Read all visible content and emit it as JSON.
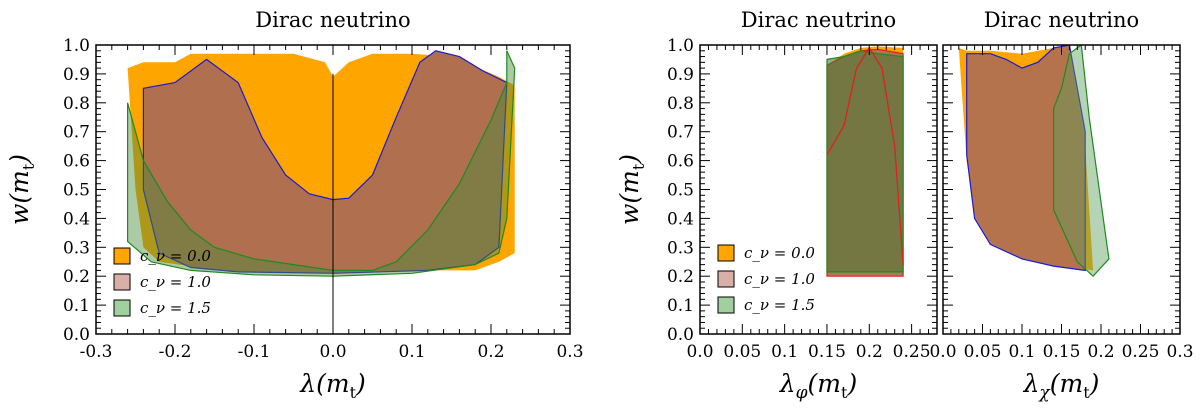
{
  "colors": {
    "c0": "#ffa500",
    "c1": "#b07050",
    "c15": "#7a7a3a",
    "c1_legend": "#d8b0a8",
    "c15_legend": "#a0d0a0",
    "blue": "#1a1ad0",
    "green": "#1f8a1f",
    "red": "#e02020"
  },
  "chart_data": [
    {
      "type": "area",
      "title": "Dirac neutrino",
      "xlabel": "λ(m_t)",
      "ylabel": "w(m_t)",
      "xlim": [
        -0.3,
        0.3
      ],
      "ylim": [
        0.0,
        1.0
      ],
      "xticks": [
        "-0.3",
        "-0.2",
        "-0.1",
        "0.0",
        "0.1",
        "0.2",
        "0.3"
      ],
      "yticks": [
        "0.0",
        "0.1",
        "0.2",
        "0.3",
        "0.4",
        "0.5",
        "0.6",
        "0.7",
        "0.8",
        "0.9",
        "1.0"
      ],
      "legend_position": "bottom-left",
      "series": [
        {
          "name": "c_ν = 0.0",
          "polygon": [
            [
              -0.26,
              0.92
            ],
            [
              -0.24,
              0.94
            ],
            [
              -0.2,
              0.94
            ],
            [
              -0.18,
              0.97
            ],
            [
              -0.1,
              0.97
            ],
            [
              -0.05,
              0.97
            ],
            [
              -0.01,
              0.94
            ],
            [
              0.0,
              0.89
            ],
            [
              0.02,
              0.94
            ],
            [
              0.05,
              0.97
            ],
            [
              0.1,
              0.97
            ],
            [
              0.15,
              0.96
            ],
            [
              0.21,
              0.89
            ],
            [
              0.23,
              0.86
            ],
            [
              0.23,
              0.28
            ],
            [
              0.21,
              0.25
            ],
            [
              0.18,
              0.22
            ],
            [
              0.1,
              0.22
            ],
            [
              0.0,
              0.215
            ],
            [
              -0.1,
              0.22
            ],
            [
              -0.17,
              0.23
            ],
            [
              -0.22,
              0.25
            ],
            [
              -0.24,
              0.3
            ],
            [
              -0.25,
              0.5
            ],
            [
              -0.26,
              0.92
            ]
          ]
        },
        {
          "name": "c_ν = 1.0",
          "polygon": [
            [
              -0.24,
              0.85
            ],
            [
              -0.2,
              0.87
            ],
            [
              -0.16,
              0.95
            ],
            [
              -0.12,
              0.87
            ],
            [
              -0.09,
              0.68
            ],
            [
              -0.06,
              0.55
            ],
            [
              -0.03,
              0.485
            ],
            [
              0.0,
              0.465
            ],
            [
              0.02,
              0.47
            ],
            [
              0.05,
              0.55
            ],
            [
              0.08,
              0.75
            ],
            [
              0.11,
              0.94
            ],
            [
              0.13,
              0.98
            ],
            [
              0.16,
              0.96
            ],
            [
              0.19,
              0.91
            ],
            [
              0.22,
              0.87
            ],
            [
              0.21,
              0.3
            ],
            [
              0.18,
              0.24
            ],
            [
              0.12,
              0.22
            ],
            [
              0.0,
              0.21
            ],
            [
              -0.12,
              0.215
            ],
            [
              -0.18,
              0.23
            ],
            [
              -0.22,
              0.28
            ],
            [
              -0.24,
              0.5
            ],
            [
              -0.24,
              0.85
            ]
          ]
        },
        {
          "name": "c_ν = 1.5",
          "polygon": [
            [
              -0.26,
              0.8
            ],
            [
              -0.24,
              0.6
            ],
            [
              -0.21,
              0.46
            ],
            [
              -0.18,
              0.36
            ],
            [
              -0.15,
              0.3
            ],
            [
              -0.1,
              0.26
            ],
            [
              0.0,
              0.22
            ],
            [
              0.05,
              0.22
            ],
            [
              0.08,
              0.25
            ],
            [
              0.12,
              0.36
            ],
            [
              0.16,
              0.52
            ],
            [
              0.2,
              0.74
            ],
            [
              0.22,
              0.87
            ],
            [
              0.22,
              0.98
            ],
            [
              0.23,
              0.92
            ],
            [
              0.22,
              0.4
            ],
            [
              0.21,
              0.28
            ],
            [
              0.18,
              0.24
            ],
            [
              0.1,
              0.21
            ],
            [
              0.0,
              0.2
            ],
            [
              -0.1,
              0.205
            ],
            [
              -0.18,
              0.22
            ],
            [
              -0.23,
              0.25
            ],
            [
              -0.26,
              0.32
            ],
            [
              -0.26,
              0.8
            ]
          ]
        }
      ]
    },
    {
      "type": "area",
      "title": "Dirac neutrino",
      "xlabel": "λ_φ(m_t)",
      "ylabel": "w(m_t)",
      "xlim": [
        0.0,
        0.28
      ],
      "ylim": [
        0.0,
        1.0
      ],
      "xticks": [
        "0.0",
        "0.05",
        "0.1",
        "0.15",
        "0.2",
        "0.25"
      ],
      "yticks": [
        "0.0",
        "0.1",
        "0.2",
        "0.3",
        "0.4",
        "0.5",
        "0.6",
        "0.7",
        "0.8",
        "0.9",
        "1.0"
      ],
      "legend_position": "bottom-left",
      "series": [
        {
          "name": "c_ν = 0.0",
          "polygon": [
            [
              0.15,
              0.93
            ],
            [
              0.17,
              0.97
            ],
            [
              0.19,
              0.99
            ],
            [
              0.21,
              0.995
            ],
            [
              0.24,
              0.99
            ],
            [
              0.24,
              0.21
            ],
            [
              0.15,
              0.21
            ],
            [
              0.15,
              0.93
            ]
          ]
        },
        {
          "name": "c_ν = 1.0",
          "polygon": [
            [
              0.15,
              0.93
            ],
            [
              0.17,
              0.96
            ],
            [
              0.19,
              0.98
            ],
            [
              0.21,
              0.985
            ],
            [
              0.24,
              0.97
            ],
            [
              0.24,
              0.2
            ],
            [
              0.15,
              0.2
            ],
            [
              0.15,
              0.93
            ]
          ]
        },
        {
          "name": "c_ν = 1.5",
          "polygon": [
            [
              0.15,
              0.95
            ],
            [
              0.17,
              0.96
            ],
            [
              0.19,
              0.98
            ],
            [
              0.21,
              0.97
            ],
            [
              0.24,
              0.96
            ],
            [
              0.24,
              0.215
            ],
            [
              0.15,
              0.215
            ],
            [
              0.15,
              0.95
            ]
          ]
        },
        {
          "name": "red boundary",
          "line": [
            [
              0.15,
              0.62
            ],
            [
              0.17,
              0.72
            ],
            [
              0.185,
              0.92
            ],
            [
              0.2,
              0.99
            ],
            [
              0.215,
              0.92
            ],
            [
              0.23,
              0.65
            ],
            [
              0.24,
              0.24
            ]
          ]
        }
      ]
    },
    {
      "type": "area",
      "title": "Dirac neutrino",
      "xlabel": "λ_χ(m_t)",
      "ylabel": "",
      "xlim": [
        0.0,
        0.3
      ],
      "ylim": [
        0.0,
        1.0
      ],
      "xticks": [
        "0.0",
        "0.05",
        "0.1",
        "0.15",
        "0.2",
        "0.25",
        "0.3"
      ],
      "yticks": [],
      "series": [
        {
          "name": "c_ν = 0.0",
          "polygon": [
            [
              0.02,
              0.99
            ],
            [
              0.03,
              0.98
            ],
            [
              0.06,
              0.98
            ],
            [
              0.1,
              0.97
            ],
            [
              0.14,
              0.99
            ],
            [
              0.16,
              1.0
            ],
            [
              0.18,
              0.65
            ],
            [
              0.19,
              0.22
            ],
            [
              0.16,
              0.23
            ],
            [
              0.1,
              0.26
            ],
            [
              0.06,
              0.32
            ],
            [
              0.04,
              0.42
            ],
            [
              0.03,
              0.6
            ],
            [
              0.02,
              0.99
            ]
          ]
        },
        {
          "name": "c_ν = 1.0",
          "polygon": [
            [
              0.03,
              0.97
            ],
            [
              0.06,
              0.97
            ],
            [
              0.08,
              0.95
            ],
            [
              0.1,
              0.92
            ],
            [
              0.12,
              0.94
            ],
            [
              0.14,
              0.99
            ],
            [
              0.16,
              1.0
            ],
            [
              0.18,
              0.7
            ],
            [
              0.18,
              0.22
            ],
            [
              0.14,
              0.235
            ],
            [
              0.1,
              0.26
            ],
            [
              0.06,
              0.31
            ],
            [
              0.04,
              0.4
            ],
            [
              0.03,
              0.62
            ],
            [
              0.03,
              0.97
            ]
          ]
        },
        {
          "name": "c_ν = 1.5",
          "polygon": [
            [
              0.14,
              0.78
            ],
            [
              0.15,
              0.85
            ],
            [
              0.16,
              0.97
            ],
            [
              0.175,
              1.0
            ],
            [
              0.185,
              0.75
            ],
            [
              0.21,
              0.26
            ],
            [
              0.19,
              0.2
            ],
            [
              0.17,
              0.25
            ],
            [
              0.14,
              0.43
            ],
            [
              0.14,
              0.78
            ]
          ]
        }
      ]
    }
  ]
}
